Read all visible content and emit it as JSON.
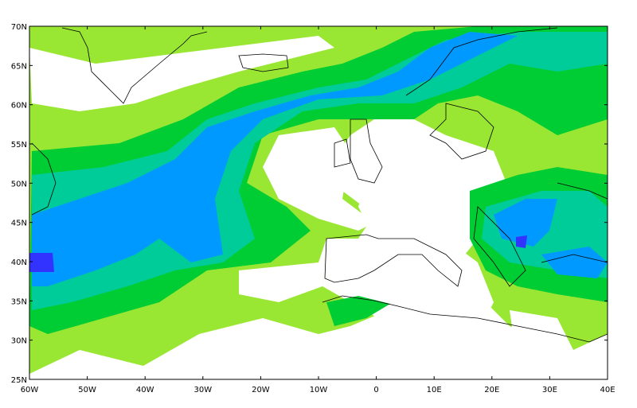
{
  "map": {
    "lat_labels": [
      "70N",
      "65N",
      "60N",
      "55N",
      "50N",
      "45N",
      "40N",
      "35N",
      "30N",
      "25N"
    ],
    "lon_labels": [
      "60W",
      "50W",
      "40W",
      "30W",
      "20W",
      "10W",
      "0",
      "10E",
      "20E",
      "30E",
      "40E"
    ]
  }
}
